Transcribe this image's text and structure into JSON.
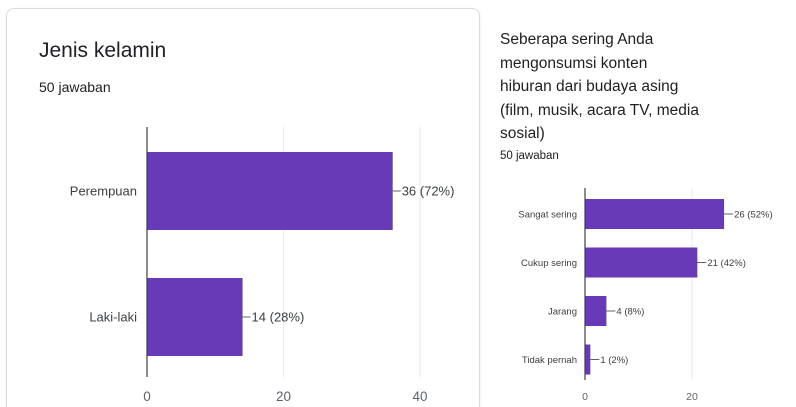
{
  "charts": [
    {
      "question": "Jenis kelamin",
      "response_count": "50 jawaban"
    },
    {
      "question": "Seberapa sering Anda mengonsumsi konten hiburan dari budaya asing (film, musik, acara TV, media sosial)",
      "response_count": "50 jawaban"
    }
  ],
  "colors": {
    "bar": "#673ab7",
    "axis": "#5f6368",
    "grid": "#e8eaed"
  },
  "chart_data": [
    {
      "type": "bar",
      "orientation": "horizontal",
      "title": "Jenis kelamin",
      "categories": [
        "Perempuan",
        "Laki-laki"
      ],
      "values": [
        36,
        14
      ],
      "data_labels": [
        "36 (72%)",
        "14 (28%)"
      ],
      "xlim": [
        0,
        40
      ],
      "xticks": [
        0,
        20,
        40
      ],
      "grid": true,
      "legend": "none"
    },
    {
      "type": "bar",
      "orientation": "horizontal",
      "title": "Seberapa sering Anda mengonsumsi konten hiburan dari budaya asing (film, musik, acara TV, media sosial)",
      "categories": [
        "Sangat sering",
        "Cukup sering",
        "Jarang",
        "Tidak pernah"
      ],
      "values": [
        26,
        21,
        4,
        1
      ],
      "data_labels": [
        "26 (52%)",
        "21 (42%)",
        "4 (8%)",
        "1 (2%)"
      ],
      "xlim": [
        0,
        40
      ],
      "xticks": [
        0,
        20
      ],
      "grid": true,
      "legend": "none"
    }
  ]
}
